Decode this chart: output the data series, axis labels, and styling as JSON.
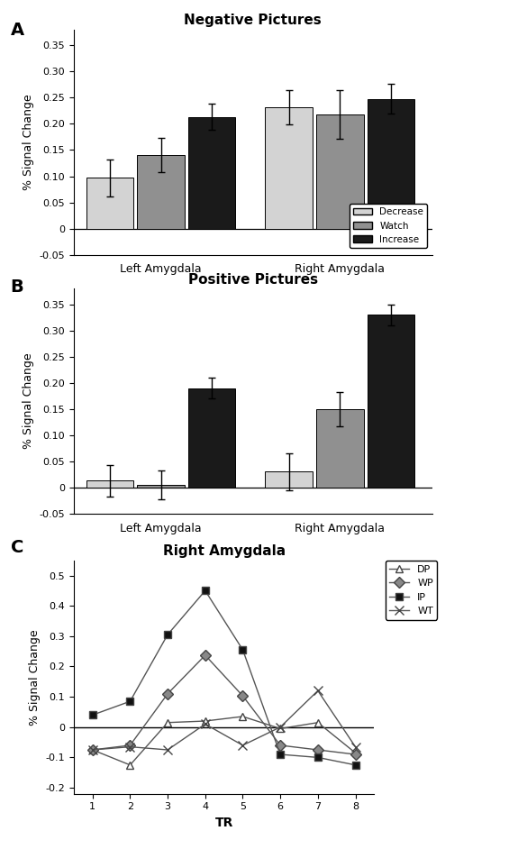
{
  "panel_A": {
    "title": "Negative Pictures",
    "ylabel": "% Signal Change",
    "groups": [
      "Left Amygdala",
      "Right Amygdala"
    ],
    "conditions": [
      "Decrease",
      "Watch",
      "Increase"
    ],
    "bar_colors": [
      "#d3d3d3",
      "#909090",
      "#1a1a1a"
    ],
    "values": [
      [
        0.097,
        0.14,
        0.213
      ],
      [
        0.232,
        0.218,
        0.248
      ]
    ],
    "errors": [
      [
        0.035,
        0.033,
        0.025
      ],
      [
        0.033,
        0.047,
        0.028
      ]
    ],
    "ylim": [
      -0.05,
      0.38
    ],
    "yticks": [
      -0.05,
      0.0,
      0.05,
      0.1,
      0.15,
      0.2,
      0.25,
      0.3,
      0.35
    ],
    "ytick_labels": [
      "-0.05",
      "0",
      "0.05",
      "0.10",
      "0.15",
      "0.20",
      "0.25",
      "0.30",
      "0.35"
    ]
  },
  "panel_B": {
    "title": "Positive Pictures",
    "ylabel": "% Signal Change",
    "groups": [
      "Left Amygdala",
      "Right Amygdala"
    ],
    "conditions": [
      "Decrease",
      "Watch",
      "Increase"
    ],
    "bar_colors": [
      "#d3d3d3",
      "#909090",
      "#1a1a1a"
    ],
    "values": [
      [
        0.013,
        0.005,
        0.19
      ],
      [
        0.03,
        0.15,
        0.33
      ]
    ],
    "errors": [
      [
        0.03,
        0.028,
        0.02
      ],
      [
        0.035,
        0.033,
        0.02
      ]
    ],
    "ylim": [
      -0.05,
      0.38
    ],
    "yticks": [
      -0.05,
      0.0,
      0.05,
      0.1,
      0.15,
      0.2,
      0.25,
      0.3,
      0.35
    ],
    "ytick_labels": [
      "-0.05",
      "0",
      "0.05",
      "0.10",
      "0.15",
      "0.20",
      "0.25",
      "0.30",
      "0.35"
    ]
  },
  "panel_C": {
    "title": "Right Amygdala",
    "xlabel": "TR",
    "ylabel": "% Signal Change",
    "x": [
      1,
      2,
      3,
      4,
      5,
      6,
      7,
      8
    ],
    "series": {
      "DP": [
        -0.075,
        -0.125,
        0.015,
        0.02,
        0.035,
        -0.005,
        0.015,
        -0.085
      ],
      "WP": [
        -0.075,
        -0.06,
        0.11,
        0.237,
        0.103,
        -0.06,
        -0.075,
        -0.09
      ],
      "IP": [
        0.04,
        0.085,
        0.305,
        0.45,
        0.255,
        -0.09,
        -0.1,
        -0.125
      ],
      "WT": [
        -0.075,
        -0.065,
        -0.075,
        0.01,
        -0.06,
        0.0,
        0.12,
        -0.065
      ]
    },
    "markers": {
      "DP": "^",
      "WP": "D",
      "IP": "s",
      "WT": "x"
    },
    "marker_fill": {
      "DP": "white",
      "WP": "#888888",
      "IP": "#111111",
      "WT": "white"
    },
    "ylim": [
      -0.22,
      0.55
    ],
    "yticks": [
      -0.2,
      -0.1,
      0.0,
      0.1,
      0.2,
      0.3,
      0.4,
      0.5
    ],
    "ytick_labels": [
      "-0.2",
      "-0.1",
      "0",
      "0.1",
      "0.2",
      "0.3",
      "0.4",
      "0.5"
    ],
    "xticks": [
      1,
      2,
      3,
      4,
      5,
      6,
      7,
      8
    ]
  }
}
